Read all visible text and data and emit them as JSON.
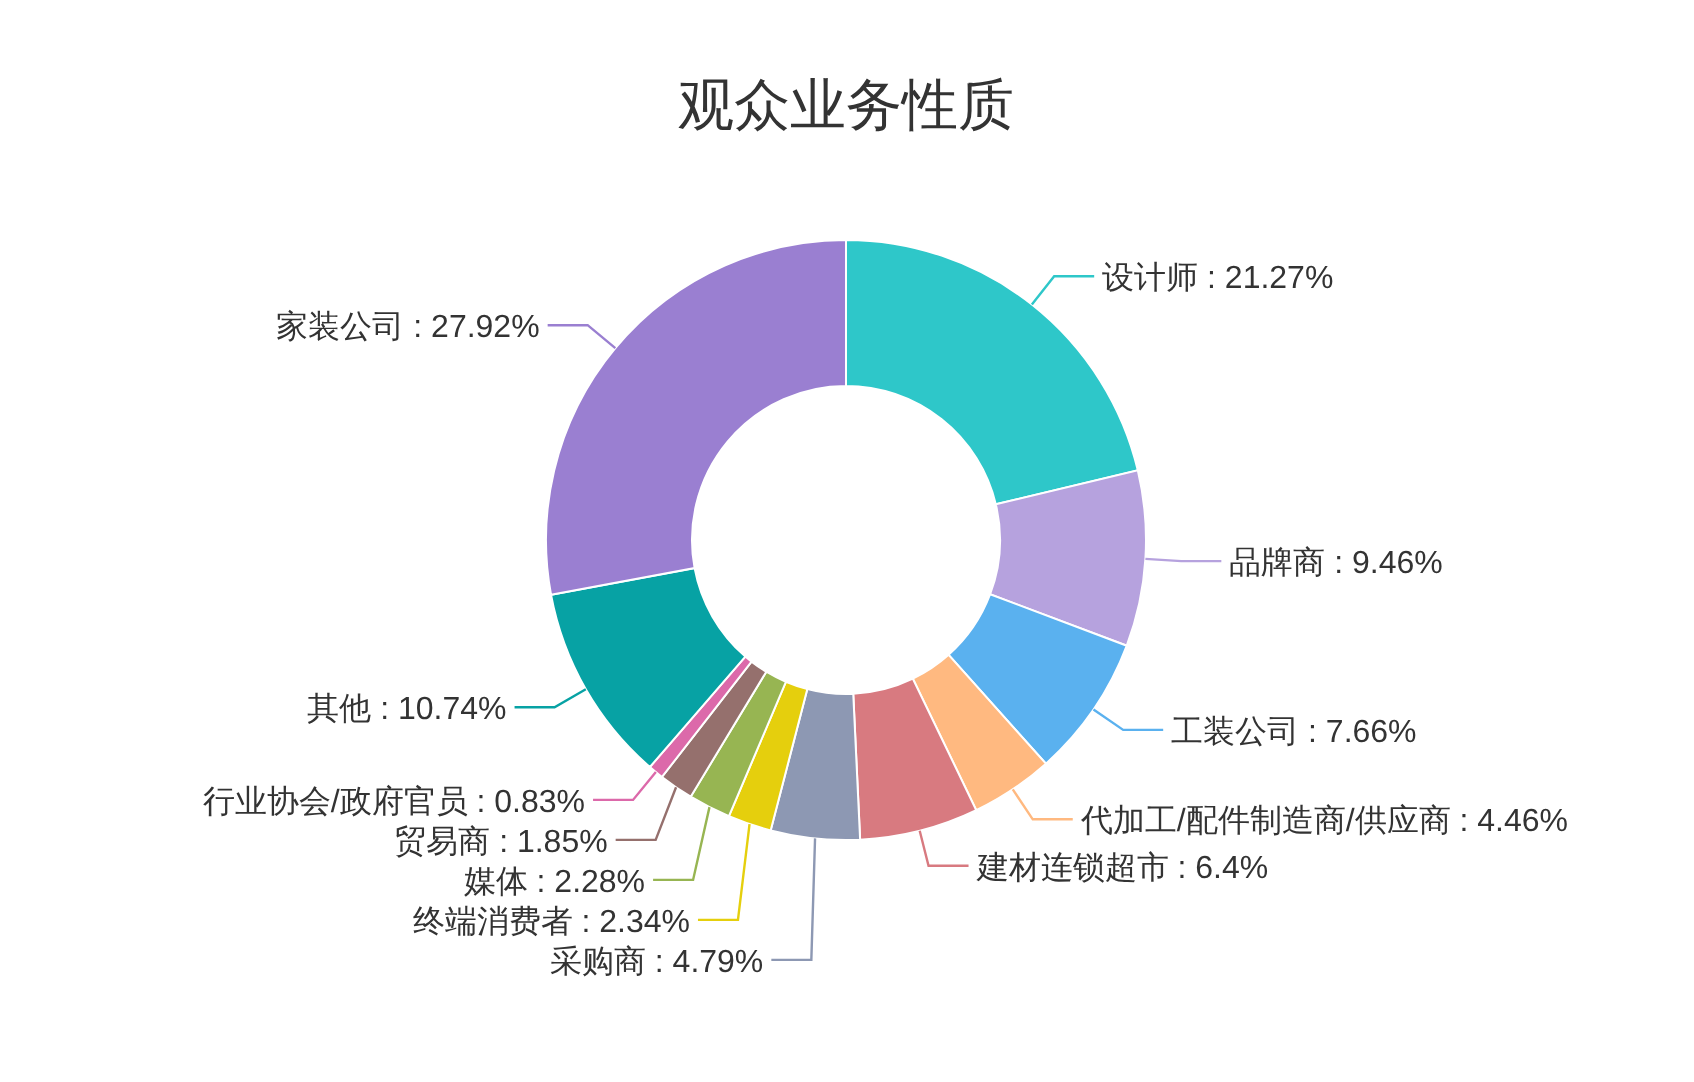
{
  "chart_data": {
    "type": "donut",
    "title": "观众业务性质",
    "categories": [
      "设计师",
      "品牌商",
      "工装公司",
      "代加工/配件制造商/供应商",
      "建材连锁超市",
      "采购商",
      "终端消费者",
      "媒体",
      "贸易商",
      "行业协会/政府官员",
      "其他",
      "家装公司"
    ],
    "values": [
      21.27,
      9.46,
      7.66,
      4.46,
      6.4,
      4.79,
      2.34,
      2.28,
      1.85,
      0.83,
      10.74,
      27.92
    ],
    "colors": [
      "#2ec7c9",
      "#b6a2de",
      "#5ab1ef",
      "#ffb980",
      "#d87a80",
      "#8d98b3",
      "#e5cf0d",
      "#97b552",
      "#95706d",
      "#dc69aa",
      "#07a2a4",
      "#9a7fd1"
    ],
    "value_labels": [
      ": 21.27%",
      ": 9.46%",
      ": 7.66%",
      ": 4.46%",
      ": 6.4%",
      ": 4.79%",
      ": 2.34%",
      ": 2.28%",
      ": 1.85%",
      ": 0.83%",
      ": 10.74%",
      ": 27.92%"
    ]
  }
}
